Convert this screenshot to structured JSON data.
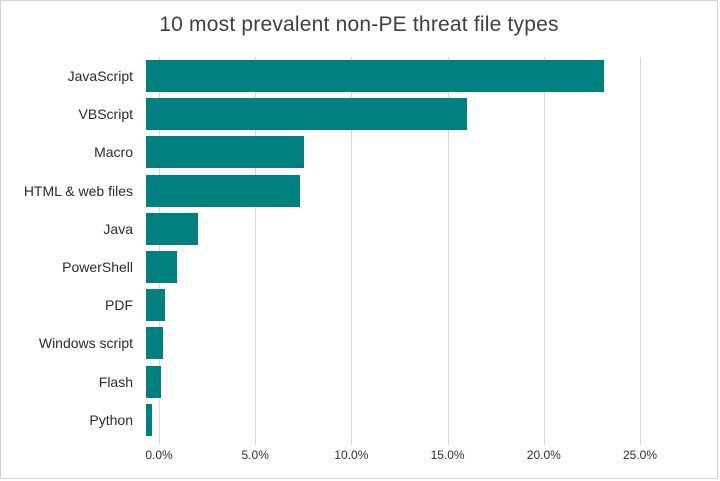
{
  "chart_data": {
    "type": "bar",
    "orientation": "horizontal",
    "title": "10 most prevalent non-PE threat file types",
    "categories": [
      "JavaScript",
      "VBScript",
      "Macro",
      "HTML & web files",
      "Java",
      "PowerShell",
      "PDF",
      "Windows script",
      "Flash",
      "Python"
    ],
    "values": [
      23.8,
      16.7,
      8.2,
      8.0,
      2.7,
      1.6,
      1.0,
      0.9,
      0.8,
      0.3
    ],
    "value_unit": "%",
    "xlabel": "",
    "ylabel": "",
    "xlim": [
      0,
      25
    ],
    "tick_labels": [
      "0.0%",
      "5.0%",
      "10.0%",
      "15.0%",
      "20.0%",
      "25.0%"
    ],
    "tick_values": [
      0,
      5,
      10,
      15,
      20,
      25
    ],
    "grid": "vertical",
    "legend": "none",
    "bar_color": "#018080",
    "gridline_color": "#d9d9d9",
    "title_color": "#404040",
    "label_color": "#2b2b2b",
    "border_color": "#d3d3d7",
    "background_color": "#ffffff"
  }
}
